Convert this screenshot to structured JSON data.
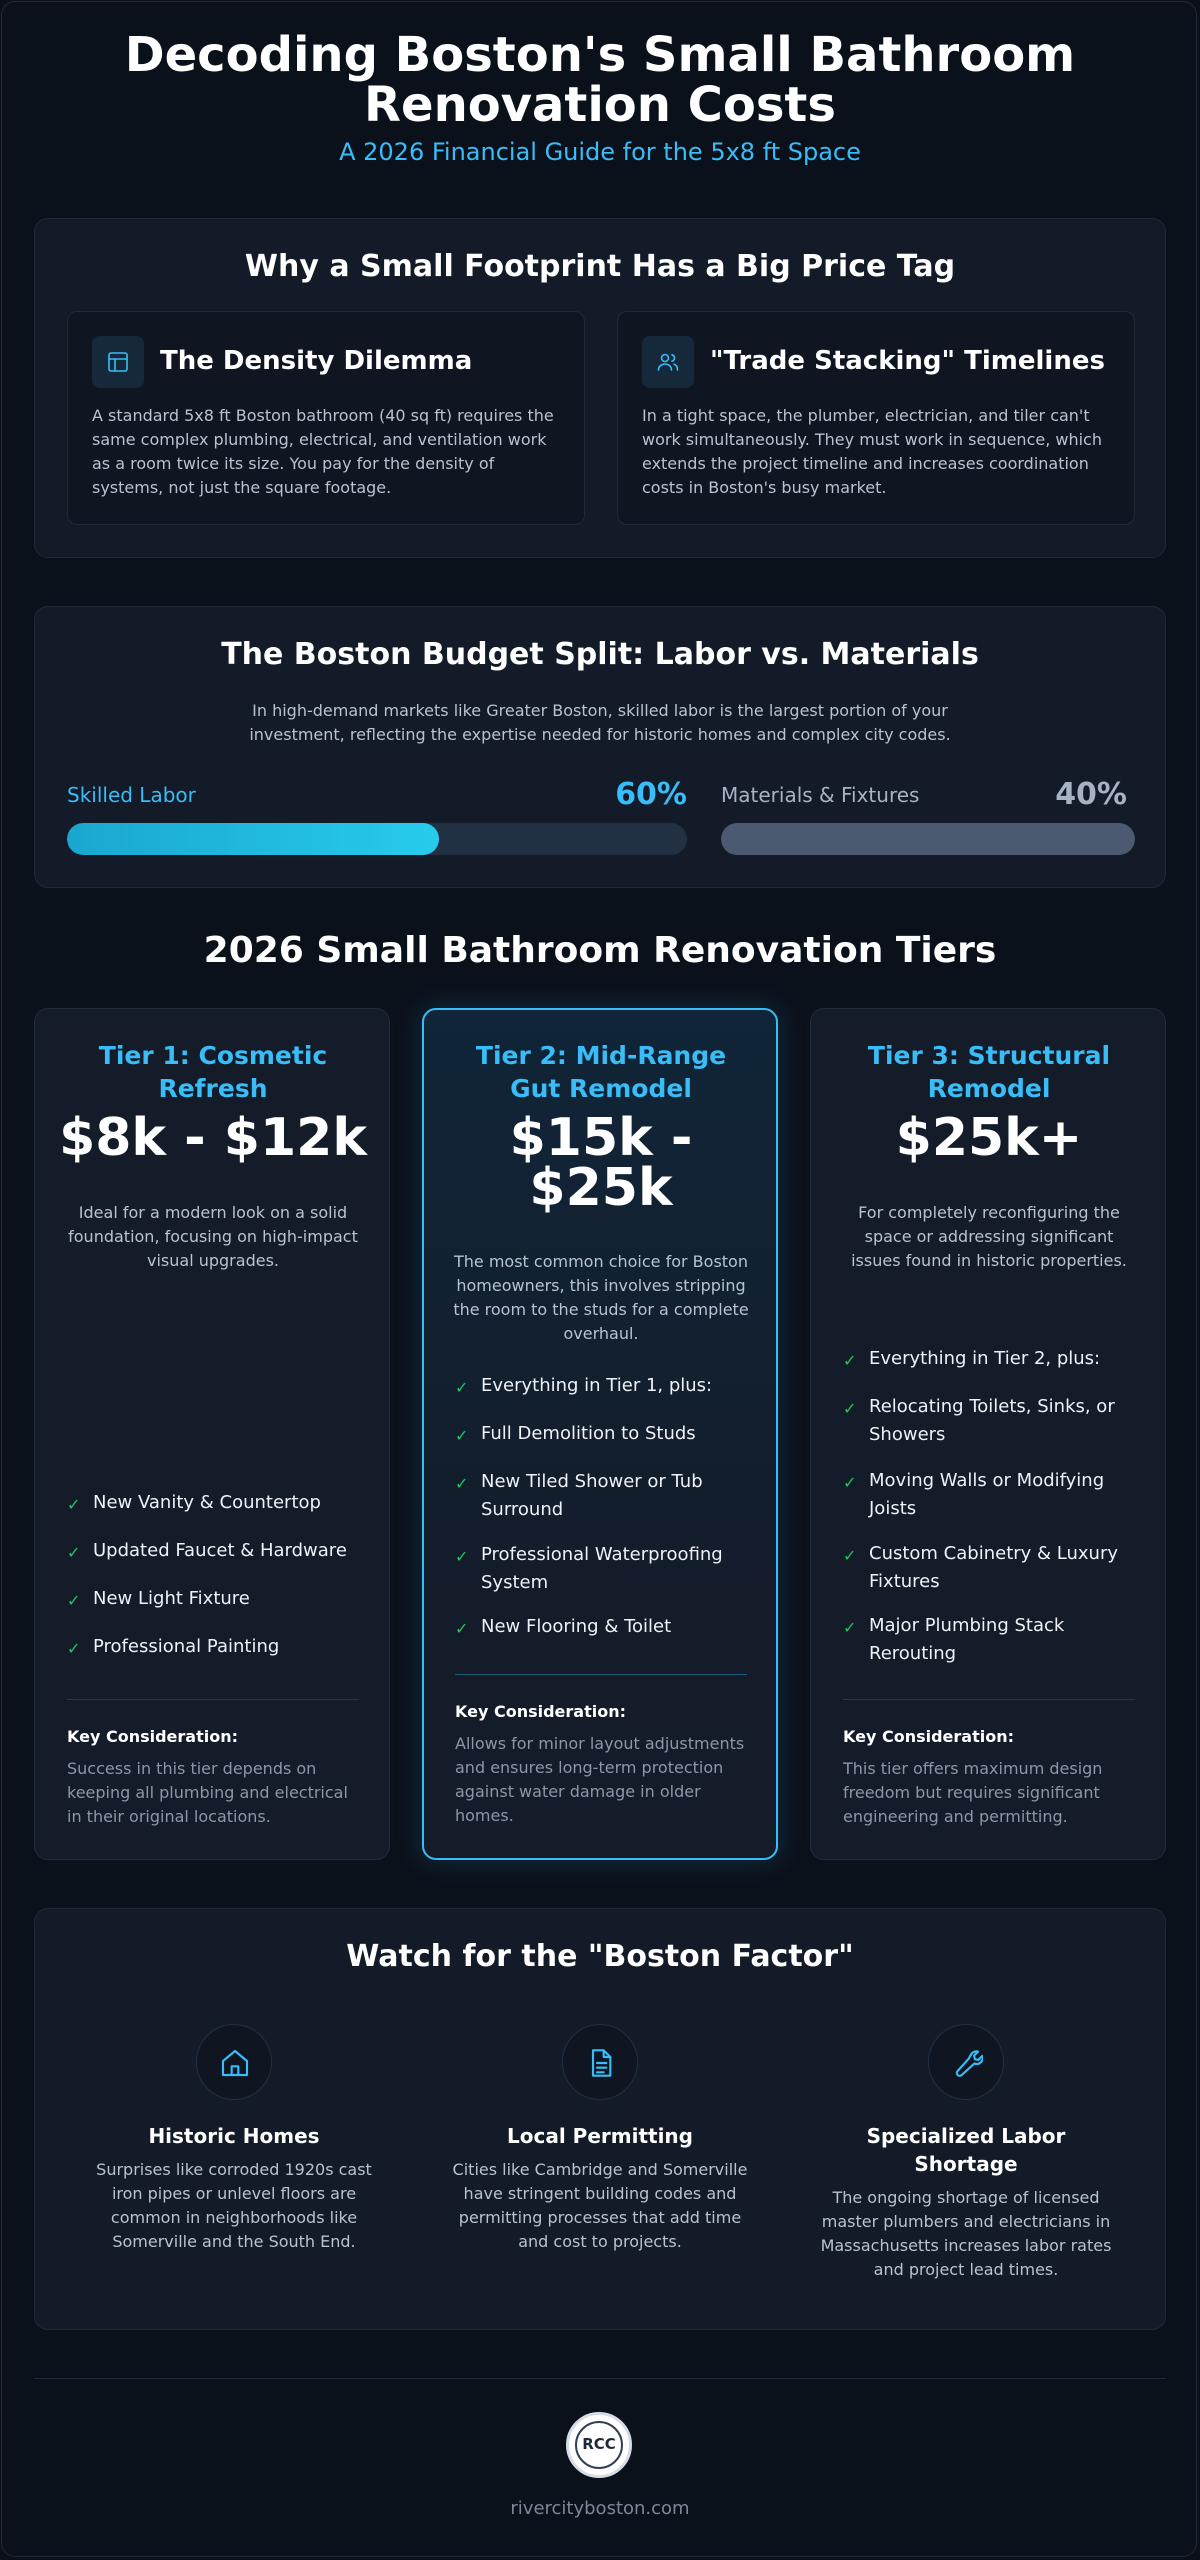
{
  "header": {
    "title": "Decoding Boston's Small Bathroom Renovation Costs",
    "subtitle": "A 2026 Financial Guide for the 5x8 ft Space"
  },
  "why": {
    "title": "Why a Small Footprint Has a Big Price Tag",
    "cards": [
      {
        "title": "The Density Dilemma",
        "icon": "layout-icon",
        "text": "A standard 5x8 ft Boston bathroom (40 sq ft) requires the same complex plumbing, electrical, and ventilation work as a room twice its size. You pay for the density of systems, not just the square footage."
      },
      {
        "title": "\"Trade Stacking\" Timelines",
        "icon": "users-icon",
        "text": "In a tight space, the plumber, electrician, and tiler can't work simultaneously. They must work in sequence, which extends the project timeline and increases coordination costs in Boston's busy market."
      }
    ]
  },
  "budget": {
    "title": "The Boston Budget Split: Labor vs. Materials",
    "description": "In high-demand markets like Greater Boston, skilled labor is the largest portion of your investment, reflecting the expertise needed for historic homes and complex city codes.",
    "labor": {
      "label": "Skilled Labor",
      "percent_text": "60%",
      "fraction": 0.6,
      "color": "#22c3e6"
    },
    "materials": {
      "label": "Materials & Fixtures",
      "percent_text": "40%",
      "fraction": 1.0,
      "color": "#4b5a70"
    }
  },
  "tiers_heading": "2026 Small Bathroom Renovation Tiers",
  "tiers": [
    {
      "name": "Tier 1: Cosmetic Refresh",
      "price": "$8k - $12k",
      "description": "Ideal for a modern look on a solid foundation, focusing on high-impact visual upgrades.",
      "features": [
        "New Vanity & Countertop",
        "Updated Faucet & Hardware",
        "New Light Fixture",
        "Professional Painting"
      ],
      "consideration_label": "Key Consideration:",
      "consideration": "Success in this tier depends on keeping all plumbing and electrical in their original locations."
    },
    {
      "name": "Tier 2: Mid-Range Gut Remodel",
      "price": "$15k - $25k",
      "description": "The most common choice for Boston homeowners, this involves stripping the room to the studs for a complete overhaul.",
      "features": [
        "Everything in Tier 1, plus:",
        "Full Demolition to Studs",
        "New Tiled Shower or Tub Surround",
        "Professional Waterproofing System",
        "New Flooring & Toilet"
      ],
      "consideration_label": "Key Consideration:",
      "consideration": "Allows for minor layout adjustments and ensures long-term protection against water damage in older homes."
    },
    {
      "name": "Tier 3: Structural Remodel",
      "price": "$25k+",
      "description": "For completely reconfiguring the space or addressing significant issues found in historic properties.",
      "features": [
        "Everything in Tier 2, plus:",
        "Relocating Toilets, Sinks, or Showers",
        "Moving Walls or Modifying Joists",
        "Custom Cabinetry & Luxury Fixtures",
        "Major Plumbing Stack Rerouting"
      ],
      "consideration_label": "Key Consideration:",
      "consideration": "This tier offers maximum design freedom but requires significant engineering and permitting."
    }
  ],
  "factor": {
    "title": "Watch for the \"Boston Factor\"",
    "items": [
      {
        "icon": "home-icon",
        "title": "Historic Homes",
        "text": "Surprises like corroded 1920s cast iron pipes or unlevel floors are common in neighborhoods like Somerville and the South End."
      },
      {
        "icon": "document-icon",
        "title": "Local Permitting",
        "text": "Cities like Cambridge and Somerville have stringent building codes and permitting processes that add time and cost to projects."
      },
      {
        "icon": "wrench-icon",
        "title": "Specialized Labor Shortage",
        "text": "The ongoing shortage of licensed master plumbers and electricians in Massachusetts increases labor rates and project lead times."
      }
    ]
  },
  "footer": {
    "logo_text": "RCC",
    "url": "rivercityboston.com"
  },
  "colors": {
    "accent": "#38bdf8",
    "check": "#22c55e",
    "background": "#0b111b"
  }
}
